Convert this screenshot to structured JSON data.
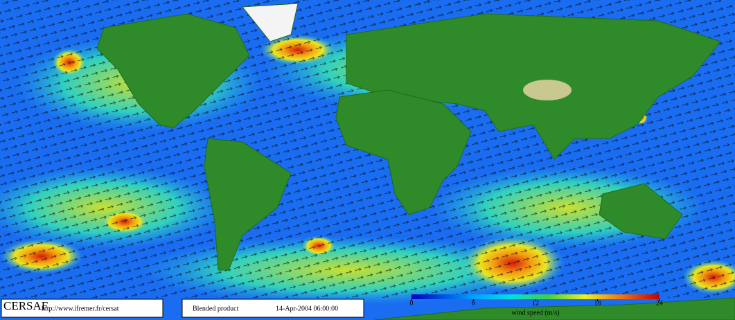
{
  "footer": {
    "logo": "CERSAF",
    "url": "http://www.ifremer.fr/cersat",
    "product": "Blended product",
    "date": "14-Apr-2004 06:00:00"
  },
  "colorbar": {
    "label": "wind speed (m/s)",
    "lim": [
      0,
      24
    ],
    "ticks": [
      0,
      6,
      12,
      18,
      24
    ]
  }
}
